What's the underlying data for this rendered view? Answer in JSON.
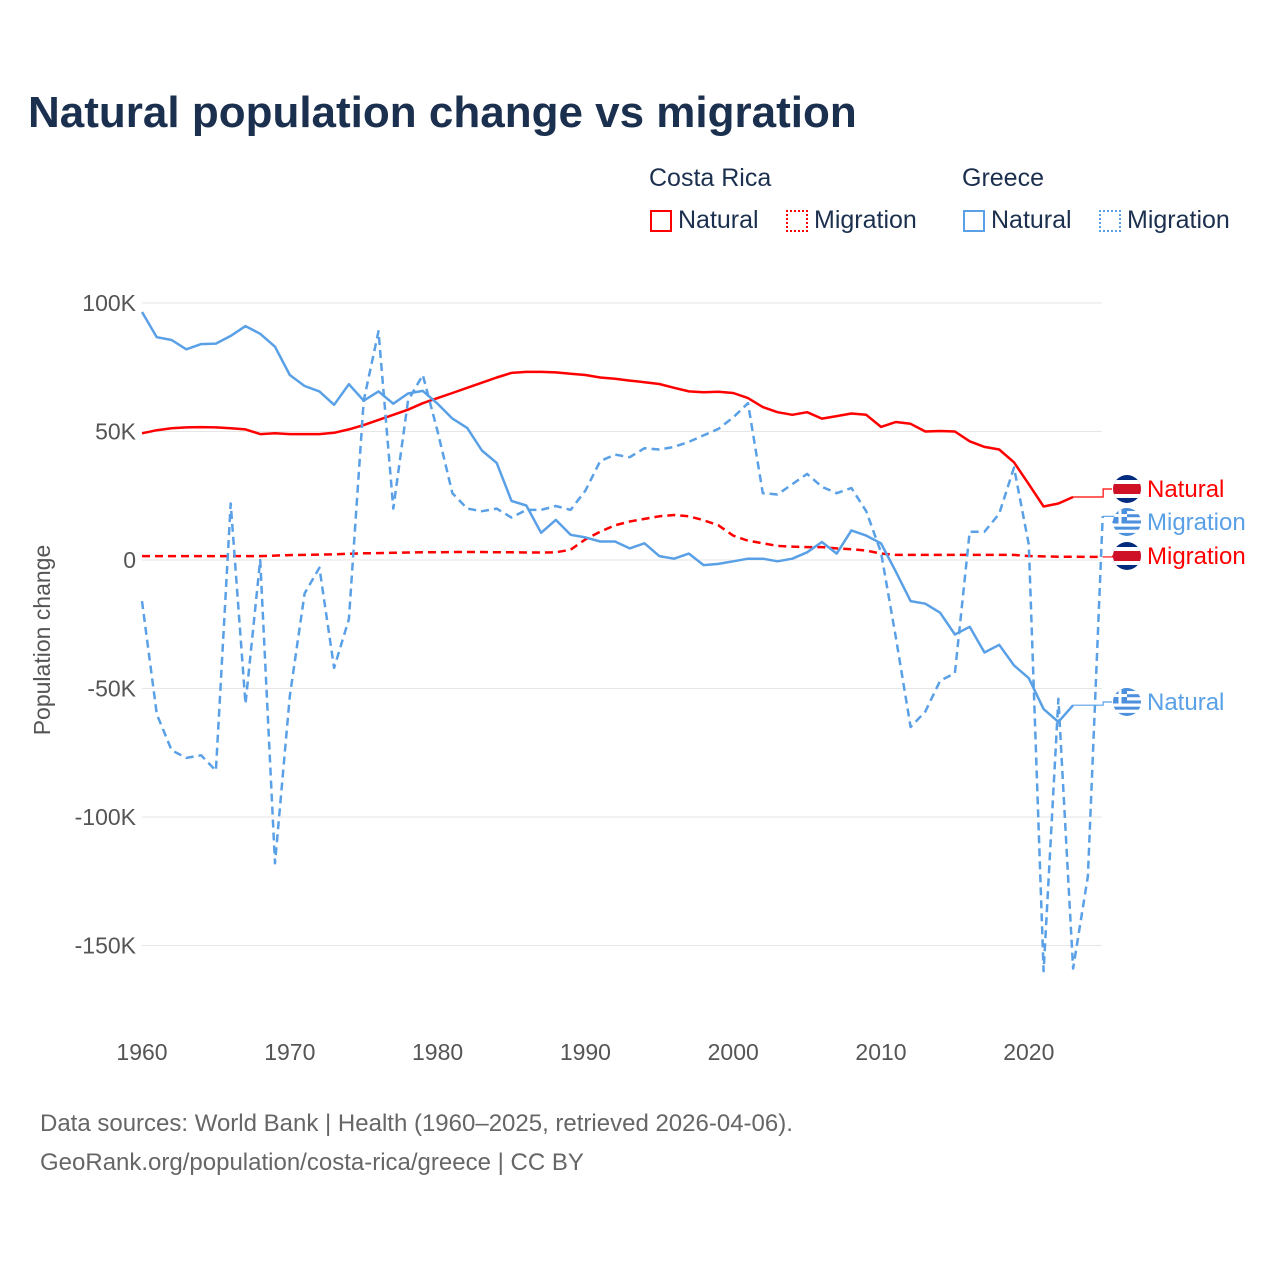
{
  "chart_data": {
    "type": "line",
    "title": "Natural population change vs migration",
    "xlabel": "",
    "ylabel": "Population change",
    "xlim": [
      1960,
      2025
    ],
    "ylim": [
      -160000,
      100000
    ],
    "x_ticks": [
      "1960",
      "1970",
      "1980",
      "1990",
      "2000",
      "2010",
      "2020"
    ],
    "y_ticks": [
      {
        "v": 100,
        "t": "100K"
      },
      {
        "v": 50,
        "t": "50K"
      },
      {
        "v": 0,
        "t": "0"
      },
      {
        "v": -50,
        "t": "-50K"
      },
      {
        "v": -100,
        "t": "-100K"
      },
      {
        "v": -150,
        "t": "-150K"
      }
    ],
    "legend": {
      "placement": "top-right",
      "groups": [
        {
          "name": "Costa Rica",
          "items": [
            "Natural",
            "Migration"
          ]
        },
        {
          "name": "Greece",
          "items": [
            "Natural",
            "Migration"
          ]
        }
      ]
    },
    "units": "thousands",
    "series": [
      {
        "name": "Costa Rica Natural",
        "country": "Costa Rica",
        "kind": "Natural",
        "color": "#ff0000",
        "dash": false,
        "end_label": "Natural",
        "start": 1960,
        "values": [
          49.3,
          50.5,
          51.3,
          51.6,
          51.7,
          51.6,
          51.3,
          50.8,
          49.0,
          49.3,
          49.0,
          49.0,
          49.0,
          49.5,
          50.8,
          52.5,
          54.5,
          56.5,
          58.5,
          61,
          63,
          65,
          67,
          69,
          71,
          72.8,
          73.2,
          73.2,
          73,
          72.5,
          72,
          71,
          70.5,
          69.8,
          69.2,
          68.5,
          67,
          65.6,
          65.3,
          65.5,
          65,
          63,
          59.5,
          57.5,
          56.5,
          57.5,
          55,
          56,
          57,
          56.5,
          51.8,
          53.7,
          53,
          50,
          50.2,
          50,
          46.2,
          44,
          43,
          38,
          29.5,
          20.8,
          22,
          24.5
        ]
      },
      {
        "name": "Costa Rica Migration",
        "country": "Costa Rica",
        "kind": "Migration",
        "color": "#ff0000",
        "dash": true,
        "end_label": "Migration",
        "start": 1960,
        "values": [
          1.5,
          1.5,
          1.5,
          1.5,
          1.5,
          1.5,
          1.5,
          1.5,
          1.5,
          1.7,
          1.9,
          2,
          2.1,
          2.2,
          2.4,
          2.6,
          2.7,
          2.8,
          2.9,
          3,
          3,
          3.1,
          3.1,
          3.1,
          3,
          3,
          2.9,
          2.9,
          3,
          4,
          8,
          11,
          13.5,
          15,
          16,
          17,
          17.5,
          17,
          15.5,
          13.5,
          9.5,
          7.5,
          6.5,
          5.5,
          5.2,
          5,
          5,
          4.5,
          4.2,
          3.7,
          2.5,
          2,
          2,
          2,
          2,
          2,
          2,
          2,
          2,
          2,
          1.5,
          1.4,
          1.3,
          1.3,
          1.2,
          1.2
        ]
      },
      {
        "name": "Greece Natural",
        "country": "Greece",
        "kind": "Natural",
        "color": "#5aa0e6",
        "dash": false,
        "end_label": "Natural",
        "start": 1960,
        "values": [
          96.5,
          86.7,
          85.6,
          82,
          84,
          84.2,
          87.2,
          91,
          88,
          83,
          72,
          67.7,
          65.6,
          60.4,
          68.4,
          62,
          65.6,
          60.8,
          64.8,
          65.8,
          60.8,
          55,
          51.4,
          42.6,
          37.8,
          23,
          21.2,
          10.6,
          15.6,
          9.8,
          8.8,
          7.2,
          7.2,
          4.5,
          6.5,
          1.5,
          0.5,
          2.5,
          -2,
          -1.5,
          -0.5,
          0.5,
          0.5,
          -0.5,
          0.5,
          3,
          7,
          2.5,
          11.5,
          9.5,
          6.5,
          -4.5,
          -16,
          -17,
          -20.5,
          -29,
          -26,
          -36,
          -33,
          -41,
          -46,
          -58,
          -63,
          -56.5
        ]
      },
      {
        "name": "Greece Migration",
        "country": "Greece",
        "kind": "Migration",
        "color": "#5aa0e6",
        "dash": true,
        "end_label": "Migration",
        "start": 1960,
        "values": [
          -16,
          -60,
          -74,
          -77,
          -76,
          -82,
          22,
          -56,
          0,
          -118,
          -53,
          -13,
          -3,
          -42,
          -23,
          62,
          89,
          20,
          62,
          72,
          50,
          26,
          20,
          19,
          20,
          16.5,
          19.5,
          19.5,
          21,
          19.5,
          27,
          38.5,
          41,
          40,
          43.5,
          43,
          44,
          46,
          48.5,
          51,
          55.5,
          61,
          26,
          25.5,
          29.5,
          33.5,
          28.5,
          26,
          28,
          19,
          3,
          -30,
          -65,
          -59,
          -47,
          -44,
          11,
          11,
          18,
          36,
          6,
          -160,
          -54,
          -159,
          -123,
          17
        ]
      }
    ]
  },
  "footer": {
    "line1": "Data sources: World Bank | Health (1960–2025, retrieved 2026-04-06).",
    "line2": "GeoRank.org/population/costa-rica/greece | CC BY"
  }
}
